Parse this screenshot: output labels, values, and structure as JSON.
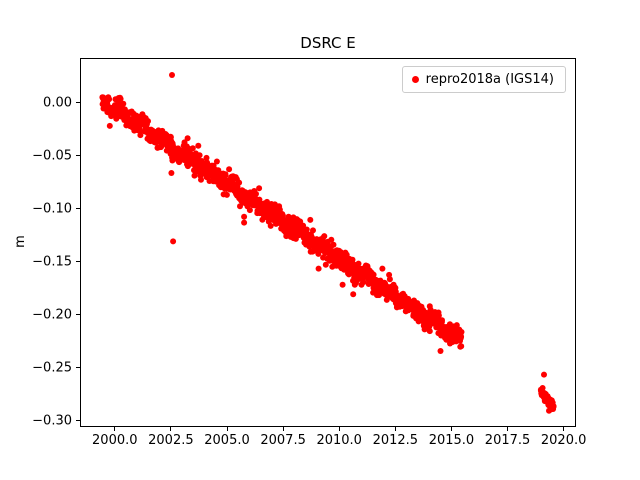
{
  "chart_data": {
    "type": "scatter",
    "title": "DSRC E",
    "xlabel": "",
    "ylabel": "m",
    "xlim": [
      1998.45,
      2020.55
    ],
    "ylim": [
      -0.306,
      0.042
    ],
    "xticks": [
      2000.0,
      2002.5,
      2005.0,
      2007.5,
      2010.0,
      2012.5,
      2015.0,
      2017.5,
      2020.0
    ],
    "xtick_labels": [
      "2000.0",
      "2002.5",
      "2005.0",
      "2007.5",
      "2010.0",
      "2012.5",
      "2015.0",
      "2017.5",
      "2020.0"
    ],
    "yticks": [
      0.0,
      -0.05,
      -0.1,
      -0.15,
      -0.2,
      -0.25,
      -0.3
    ],
    "ytick_labels": [
      "0.00",
      "−0.05",
      "−0.10",
      "−0.15",
      "−0.20",
      "−0.25",
      "−0.30"
    ],
    "grid": false,
    "legend": {
      "position": "upper right",
      "entries": [
        "repro2018a (IGS14)"
      ]
    },
    "series": [
      {
        "name": "repro2018a (IGS14)",
        "color": "#ff0000",
        "marker": "circle",
        "marker_radius_px": 3,
        "slope_m_per_yr": -0.0141,
        "segments": [
          {
            "x_start": 1999.45,
            "x_end": 2015.45,
            "y_start": 0.002,
            "y_end": -0.224,
            "noise_std": 0.0045,
            "seasonal_amp": 0.0025,
            "n_points": 1500
          },
          {
            "x_start": 2018.98,
            "x_end": 2019.55,
            "y_start": -0.272,
            "y_end": -0.287,
            "noise_std": 0.0025,
            "seasonal_amp": 0.0,
            "n_points": 70
          }
        ],
        "outliers": [
          [
            2002.55,
            0.026
          ],
          [
            2002.6,
            -0.131
          ]
        ]
      }
    ]
  }
}
